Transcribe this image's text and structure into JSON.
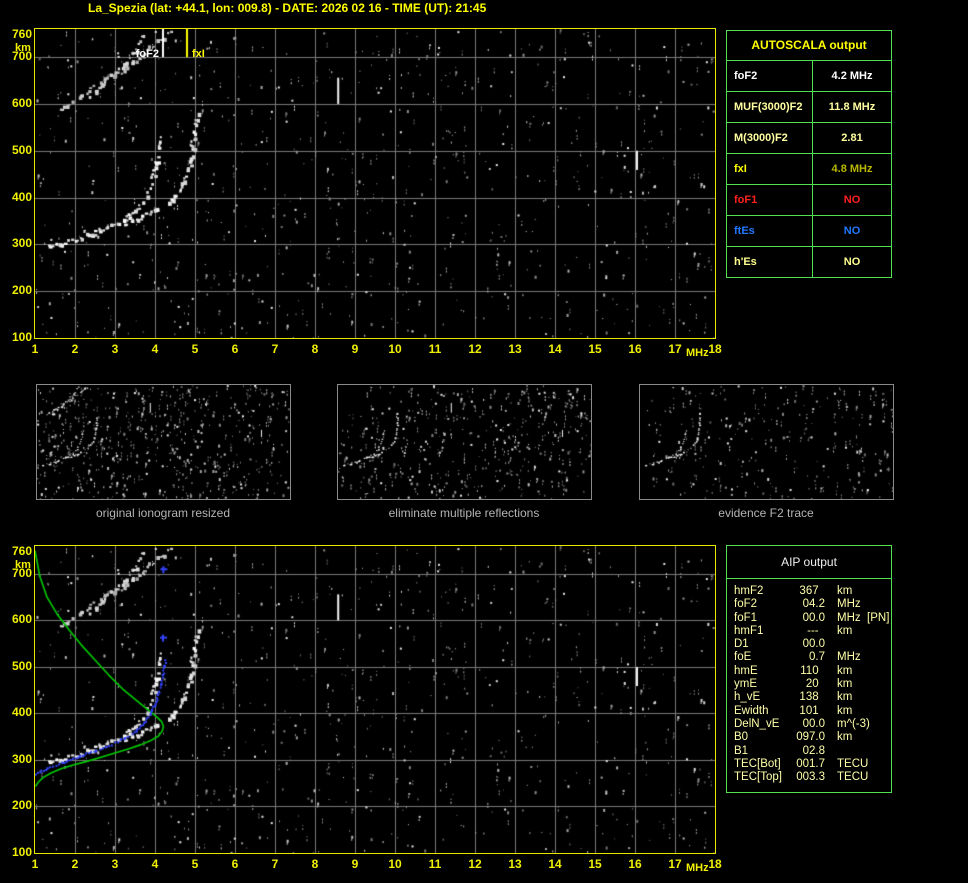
{
  "title": "La_Spezia (lat: +44.1, lon: 009.8) - DATE: 2026 02 16 - TIME (UT): 21:45",
  "colors": {
    "background": "#000000",
    "plot_border": "#e8e800",
    "grid": "#7a7a7a",
    "axis_labels": "#f0f000",
    "table_border": "#50e050",
    "caption_grey": "#b4b4b4",
    "profile_green": "#00cc00",
    "model_blue": "#3344ff",
    "marker_foF2": "#ffffff",
    "marker_fxI": "#ffff00"
  },
  "autoscala_table": {
    "header": "AUTOSCALA output",
    "rows": [
      {
        "label": "foF2",
        "value": "4.2 MHz",
        "label_color": "#ffffff",
        "value_color": "#ffffff"
      },
      {
        "label": "MUF(3000)F2",
        "value": "11.8 MHz",
        "label_color": "#ffffa0",
        "value_color": "#ffffa0"
      },
      {
        "label": "M(3000)F2",
        "value": "2.81",
        "label_color": "#ffffa0",
        "value_color": "#ffffa0"
      },
      {
        "label": "fxI",
        "value": "4.8 MHz",
        "label_color": "#ffff00",
        "value_color": "#b8b800"
      },
      {
        "label": "foF1",
        "value": "NO",
        "label_color": "#ff2020",
        "value_color": "#ff2020"
      },
      {
        "label": "ftEs",
        "value": "NO",
        "label_color": "#2277ff",
        "value_color": "#2277ff"
      },
      {
        "label": "h'Es",
        "value": "NO",
        "label_color": "#ffff90",
        "value_color": "#ffff90"
      }
    ]
  },
  "aip_table": {
    "header": "AIP output",
    "rows": [
      [
        "hmF2",
        "367  ",
        "km"
      ],
      [
        "foF2",
        "04.2",
        "MHz"
      ],
      [
        "foF1",
        "00.0",
        "MHz  [PN]"
      ],
      [
        "hmF1",
        "---  ",
        "km"
      ],
      [
        "D1",
        "00.0",
        ""
      ],
      [
        "foE",
        "0.7",
        "MHz"
      ],
      [
        "hmE",
        "110  ",
        "km"
      ],
      [
        "ymE",
        "20  ",
        "km"
      ],
      [
        "h_vE",
        "138  ",
        "km"
      ],
      [
        "Ewidth",
        "101  ",
        "km"
      ],
      [
        "DelN_vE",
        "00.0",
        "m^(-3)"
      ],
      [
        "B0",
        "097.0",
        "km"
      ],
      [
        "B1",
        "02.8",
        ""
      ],
      [
        "TEC[Bot]",
        "001.7",
        "TECU"
      ],
      [
        "TEC[Top]",
        "003.3",
        "TECU"
      ]
    ]
  },
  "panels": [
    {
      "caption": "original ionogram resized",
      "series": [
        "F2-trace-O",
        "F2-trace-X",
        "second-hop-O",
        "second-hop-X",
        "rfi-dash-1",
        "rfi-dash-2"
      ],
      "noise": {
        "seed": 7,
        "count": 540,
        "bright": 36
      }
    },
    {
      "caption": "eliminate multiple reflections",
      "series": [
        "F2-trace-O",
        "F2-trace-X",
        "second-hop-remnant",
        "rfi-dash-1",
        "rfi-dash-2"
      ],
      "noise": {
        "seed": 8,
        "count": 430,
        "bright": 28
      }
    },
    {
      "caption": "evidence F2 trace",
      "series": [
        "F2-trace-O",
        "F2-trace-X",
        "second-hop-remnant"
      ],
      "noise": {
        "seed": 9,
        "count": 270,
        "bright": 20
      }
    }
  ],
  "chart_data": [
    {
      "type": "scatter",
      "name": "ionogram-top",
      "xlabel": "MHz",
      "ylabel": "km",
      "xlim": [
        1,
        18
      ],
      "ylim": [
        100,
        760
      ],
      "x_ticks": [
        1,
        2,
        3,
        4,
        5,
        6,
        7,
        8,
        9,
        10,
        11,
        12,
        13,
        14,
        15,
        16,
        17,
        18
      ],
      "y_ticks": [
        760,
        700,
        600,
        500,
        400,
        300,
        200,
        100
      ],
      "grid": true,
      "markers": [
        {
          "label": "foF2",
          "x": 4.2,
          "color": "#ffffff"
        },
        {
          "label": "fxI",
          "x": 4.8,
          "color": "#ffff00"
        }
      ],
      "noise": {
        "seed": 42,
        "count": 760,
        "bright": 55
      },
      "series": [
        {
          "name": "F2-trace-O",
          "style": "echo",
          "points": [
            [
              1.3,
              296
            ],
            [
              1.55,
              302
            ],
            [
              1.85,
              309
            ],
            [
              2.15,
              317
            ],
            [
              2.45,
              326
            ],
            [
              2.75,
              336
            ],
            [
              3.05,
              349
            ],
            [
              3.3,
              362
            ],
            [
              3.55,
              380
            ],
            [
              3.72,
              400
            ],
            [
              3.85,
              424
            ],
            [
              3.95,
              452
            ],
            [
              4.02,
              480
            ],
            [
              4.07,
              505
            ],
            [
              4.1,
              528
            ]
          ]
        },
        {
          "name": "F2-trace-X",
          "style": "echo",
          "points": [
            [
              3.2,
              345
            ],
            [
              3.45,
              353
            ],
            [
              3.7,
              362
            ],
            [
              3.95,
              372
            ],
            [
              4.2,
              383
            ],
            [
              4.4,
              396
            ],
            [
              4.55,
              412
            ],
            [
              4.68,
              432
            ],
            [
              4.78,
              456
            ],
            [
              4.86,
              482
            ],
            [
              4.92,
              510
            ],
            [
              4.97,
              538
            ],
            [
              5.0,
              562
            ],
            [
              5.03,
              582
            ]
          ]
        },
        {
          "name": "second-hop-O",
          "style": "echo-dim",
          "points": [
            [
              1.55,
              586
            ],
            [
              1.8,
              600
            ],
            [
              2.1,
              617
            ],
            [
              2.4,
              634
            ],
            [
              2.7,
              651
            ],
            [
              3.0,
              668
            ],
            [
              3.25,
              690
            ],
            [
              3.45,
              712
            ],
            [
              3.6,
              733
            ],
            [
              3.72,
              750
            ]
          ]
        },
        {
          "name": "second-hop-X",
          "style": "echo-dim",
          "points": [
            [
              2.35,
              620
            ],
            [
              2.65,
              640
            ],
            [
              2.95,
              660
            ],
            [
              3.25,
              680
            ],
            [
              3.55,
              700
            ],
            [
              3.85,
              722
            ],
            [
              4.15,
              742
            ],
            [
              4.4,
              755
            ]
          ]
        },
        {
          "name": "second-hop-remnant",
          "style": "echo-dim",
          "in_main": false,
          "points": [
            [
              2.9,
              736
            ],
            [
              3.25,
              756
            ]
          ]
        },
        {
          "name": "rfi-dash-1",
          "style": "vline",
          "points": [
            [
              8.58,
              600
            ],
            [
              8.58,
              656
            ]
          ]
        },
        {
          "name": "rfi-dash-2",
          "style": "vline",
          "points": [
            [
              16.05,
              459
            ],
            [
              16.05,
              500
            ]
          ]
        }
      ]
    },
    {
      "type": "scatter",
      "name": "ionogram-bottom",
      "xlabel": "MHz",
      "ylabel": "km",
      "xlim": [
        1,
        18
      ],
      "ylim": [
        100,
        760
      ],
      "x_ticks": [
        1,
        2,
        3,
        4,
        5,
        6,
        7,
        8,
        9,
        10,
        11,
        12,
        13,
        14,
        15,
        16,
        17,
        18
      ],
      "y_ticks": [
        760,
        700,
        600,
        500,
        400,
        300,
        200,
        100
      ],
      "grid": true,
      "echo_series_from_top": true,
      "noise": {
        "seed": 42,
        "count": 760,
        "bright": 55
      },
      "series": [
        {
          "name": "Ne-profile",
          "style": "line",
          "color": "#00cc00",
          "points": [
            [
              1.0,
              750
            ],
            [
              1.12,
              695
            ],
            [
              1.3,
              650
            ],
            [
              1.55,
              614
            ],
            [
              1.85,
              580
            ],
            [
              2.15,
              548
            ],
            [
              2.5,
              515
            ],
            [
              2.85,
              482
            ],
            [
              3.2,
              452
            ],
            [
              3.55,
              427
            ],
            [
              3.85,
              406
            ],
            [
              4.05,
              392
            ],
            [
              4.17,
              382
            ],
            [
              4.21,
              372
            ],
            [
              4.18,
              362
            ],
            [
              4.08,
              351
            ],
            [
              3.9,
              342
            ],
            [
              3.65,
              333
            ],
            [
              3.35,
              324
            ],
            [
              3.0,
              315
            ],
            [
              2.65,
              306
            ],
            [
              2.3,
              297
            ],
            [
              1.95,
              289
            ],
            [
              1.65,
              281
            ],
            [
              1.4,
              272
            ],
            [
              1.2,
              262
            ],
            [
              1.08,
              252
            ],
            [
              1.01,
              243
            ]
          ]
        },
        {
          "name": "model-trace",
          "style": "dots",
          "color": "#3344ff",
          "points": [
            [
              1.0,
              272
            ],
            [
              1.3,
              283
            ],
            [
              1.7,
              297
            ],
            [
              2.1,
              310
            ],
            [
              2.5,
              322
            ],
            [
              2.9,
              335
            ],
            [
              3.2,
              348
            ],
            [
              3.5,
              364
            ],
            [
              3.7,
              381
            ],
            [
              3.85,
              399
            ],
            [
              3.97,
              419
            ],
            [
              4.06,
              441
            ],
            [
              4.13,
              463
            ],
            [
              4.18,
              485
            ],
            [
              4.22,
              503
            ],
            [
              4.25,
              517
            ]
          ]
        },
        {
          "name": "model-trace-isolated",
          "style": "plus",
          "color": "#3344ff",
          "points": [
            [
              4.2,
              563
            ],
            [
              4.21,
              710
            ]
          ]
        }
      ]
    }
  ]
}
